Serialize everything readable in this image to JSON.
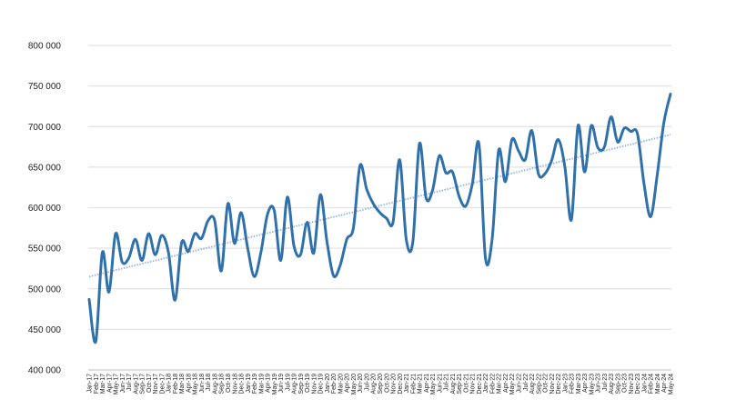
{
  "chart_data": {
    "type": "line",
    "title": "",
    "xlabel": "",
    "ylabel": "",
    "ylim": [
      400000,
      800000
    ],
    "yticks": [
      "800 000",
      "750 000",
      "700 000",
      "650 000",
      "600 000",
      "550 000",
      "500 000",
      "450 000",
      "400 000"
    ],
    "ytick_values": [
      800000,
      750000,
      700000,
      650000,
      600000,
      550000,
      500000,
      450000,
      400000
    ],
    "grid": true,
    "legend": "none",
    "x": [
      "Jan-17",
      "Feb-17",
      "Mar-17",
      "Apr-17",
      "May-17",
      "Jun-17",
      "Jul-17",
      "Aug-17",
      "Sep-17",
      "Oct-17",
      "Nov-17",
      "Dec-17",
      "Jan-18",
      "Feb-18",
      "Mar-18",
      "Apr-18",
      "May-18",
      "Jun-18",
      "Jul-18",
      "Aug-18",
      "Sep-18",
      "Oct-18",
      "Nov-18",
      "Dec-18",
      "Jan-19",
      "Feb-19",
      "Mar-19",
      "Apr-19",
      "May-19",
      "Jun-19",
      "Jul-19",
      "Aug-19",
      "Sep-19",
      "Oct-19",
      "Nov-19",
      "Dec-19",
      "Jan-20",
      "Feb-20",
      "Mar-20",
      "Apr-20",
      "May-20",
      "Jun-20",
      "Jul-20",
      "Aug-20",
      "Sep-20",
      "Oct-20",
      "Nov-20",
      "Dec-20",
      "Jan-21",
      "Feb-21",
      "Mar-21",
      "Apr-21",
      "May-21",
      "Jun-21",
      "Jul-21",
      "Aug-21",
      "Sep-21",
      "Oct-21",
      "Nov-21",
      "Dec-21",
      "Jan-22",
      "Feb-22",
      "Mar-22",
      "Apr-22",
      "May-22",
      "Jun-22",
      "Jul-22",
      "Aug-22",
      "Sep-22",
      "Oct-22",
      "Nov-22",
      "Dec-22",
      "Jan-23",
      "Feb-23",
      "Mar-23",
      "Apr-23",
      "May-23",
      "Jun-23",
      "Jul-23",
      "Aug-23",
      "Sep-23",
      "Oct-23",
      "Nov-23",
      "Dec-23",
      "Jan-24",
      "Feb-24",
      "Mar-24",
      "Apr-24",
      "May-24"
    ],
    "series": [
      {
        "values": [
          487000,
          435000,
          545000,
          496000,
          568000,
          533000,
          538000,
          561000,
          535000,
          568000,
          542000,
          566000,
          545000,
          486000,
          557000,
          546000,
          568000,
          562000,
          584000,
          584000,
          522000,
          605000,
          556000,
          594000,
          550000,
          515000,
          545000,
          592000,
          597000,
          535000,
          613000,
          553000,
          542000,
          582000,
          544000,
          616000,
          558000,
          516000,
          529000,
          561000,
          575000,
          652000,
          623000,
          605000,
          594000,
          587000,
          582000,
          659000,
          561000,
          558000,
          679000,
          612000,
          622000,
          664000,
          643000,
          644000,
          614000,
          602000,
          629000,
          679000,
          537000,
          561000,
          671000,
          632000,
          684000,
          670000,
          659000,
          695000,
          642000,
          642000,
          658000,
          684000,
          651000,
          585000,
          701000,
          644000,
          701000,
          674000,
          675000,
          712000,
          681000,
          698000,
          694000,
          691000,
          629000,
          589000,
          641000,
          705000,
          740000
        ]
      }
    ],
    "trendline": {
      "start": 515000,
      "end": 690000
    },
    "colors": {
      "line": "#3071ab",
      "trend": "#8db3e2",
      "grid": "#e3e3e3",
      "axis": "#bdbdbd"
    }
  }
}
